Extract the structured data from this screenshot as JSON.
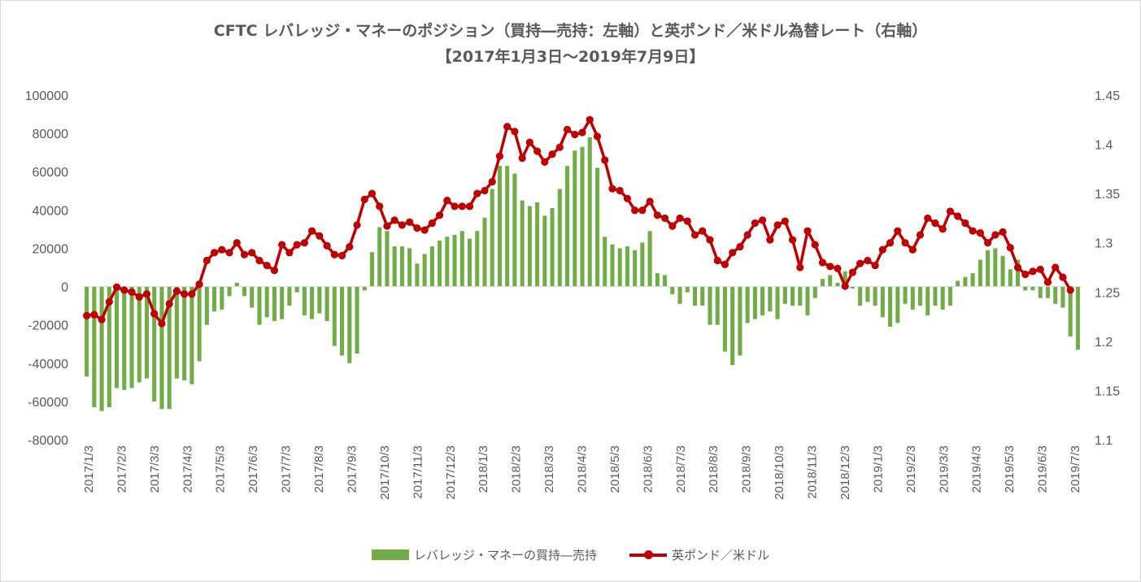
{
  "chart_data": {
    "type": "bar+line",
    "title_line1": "CFTC レバレッジ・マネーのポジション（買持―売持：左軸）と英ポンド／米ドル為替レート（右軸）",
    "title_line2": "【2017年1月3日～2019年7月9日】",
    "y_left": {
      "min": -80000,
      "max": 100000,
      "step": 20000,
      "ticks": [
        "-80000",
        "-60000",
        "-40000",
        "-20000",
        "0",
        "20000",
        "40000",
        "60000",
        "80000",
        "100000"
      ]
    },
    "y_right": {
      "min": 1.1,
      "max": 1.45,
      "step": 0.05,
      "ticks": [
        "1.1",
        "1.15",
        "1.2",
        "1.25",
        "1.3",
        "1.35",
        "1.4",
        "1.45"
      ]
    },
    "x_tick_labels": [
      "2017/1/3",
      "2017/2/3",
      "2017/3/3",
      "2017/4/3",
      "2017/5/3",
      "2017/6/3",
      "2017/7/3",
      "2017/8/3",
      "2017/9/3",
      "2017/10/3",
      "2017/11/3",
      "2017/12/3",
      "2018/1/3",
      "2018/2/3",
      "2018/3/3",
      "2018/4/3",
      "2018/5/3",
      "2018/6/3",
      "2018/7/3",
      "2018/8/3",
      "2018/9/3",
      "2018/10/3",
      "2018/11/3",
      "2018/12/3",
      "2019/1/3",
      "2019/2/3",
      "2019/3/3",
      "2019/4/3",
      "2019/5/3",
      "2019/6/3",
      "2019/7/3"
    ],
    "grid": false,
    "legend_position": "bottom",
    "series": [
      {
        "name": "レバレッジ・マネーの買持―売持",
        "type": "bar",
        "axis": "left",
        "color": "#70ad47",
        "values": [
          -47000,
          -63000,
          -65000,
          -63000,
          -53000,
          -54000,
          -53000,
          -50000,
          -48000,
          -60000,
          -64000,
          -64000,
          -48000,
          -49000,
          -51000,
          -39000,
          -20000,
          -13000,
          -12000,
          -5000,
          2000,
          -5000,
          -11000,
          -20000,
          -16000,
          -18000,
          -17000,
          -10000,
          -3000,
          -15000,
          -17000,
          -14000,
          -18000,
          -31000,
          -36000,
          -40000,
          -35000,
          -2000,
          18000,
          31000,
          29000,
          21000,
          21000,
          20000,
          12000,
          17000,
          21000,
          24000,
          26000,
          27000,
          29000,
          25000,
          29000,
          36000,
          51000,
          63000,
          63000,
          59000,
          45000,
          42000,
          44000,
          37000,
          41000,
          51000,
          63000,
          71000,
          73000,
          78000,
          62000,
          26000,
          22000,
          20000,
          21000,
          19000,
          23000,
          29000,
          7000,
          6000,
          -4000,
          -9000,
          -3000,
          -10000,
          -10000,
          -20000,
          -20000,
          -34000,
          -41000,
          -36000,
          -19000,
          -17000,
          -15000,
          -13000,
          -17000,
          -9000,
          -10000,
          -10000,
          -15000,
          -6000,
          4000,
          6000,
          2000,
          8000,
          -1000,
          -10000,
          -8000,
          -10000,
          -16000,
          -21000,
          -19000,
          -9000,
          -12000,
          -10000,
          -15000,
          -10000,
          -12000,
          -10000,
          3000,
          5000,
          7000,
          14000,
          19000,
          20000,
          16000,
          9000,
          14000,
          -2000,
          -2000,
          -6000,
          -6000,
          -9000,
          -11000,
          -26000,
          -33000
        ]
      },
      {
        "name": "英ポンド／米ドル",
        "type": "line",
        "axis": "right",
        "color": "#c00000",
        "values": [
          1.226,
          1.227,
          1.222,
          1.24,
          1.255,
          1.252,
          1.25,
          1.245,
          1.248,
          1.228,
          1.218,
          1.238,
          1.251,
          1.248,
          1.248,
          1.258,
          1.282,
          1.29,
          1.293,
          1.29,
          1.3,
          1.288,
          1.29,
          1.282,
          1.277,
          1.272,
          1.298,
          1.29,
          1.298,
          1.3,
          1.312,
          1.307,
          1.297,
          1.288,
          1.287,
          1.296,
          1.318,
          1.344,
          1.35,
          1.337,
          1.317,
          1.323,
          1.318,
          1.321,
          1.315,
          1.313,
          1.32,
          1.328,
          1.343,
          1.337,
          1.337,
          1.337,
          1.35,
          1.353,
          1.362,
          1.388,
          1.418,
          1.413,
          1.386,
          1.402,
          1.393,
          1.382,
          1.39,
          1.397,
          1.415,
          1.41,
          1.412,
          1.425,
          1.408,
          1.384,
          1.355,
          1.353,
          1.345,
          1.333,
          1.333,
          1.342,
          1.328,
          1.325,
          1.317,
          1.325,
          1.322,
          1.308,
          1.312,
          1.303,
          1.282,
          1.278,
          1.29,
          1.296,
          1.308,
          1.32,
          1.323,
          1.303,
          1.318,
          1.322,
          1.303,
          1.275,
          1.312,
          1.298,
          1.28,
          1.276,
          1.274,
          1.256,
          1.27,
          1.279,
          1.282,
          1.277,
          1.293,
          1.3,
          1.312,
          1.3,
          1.293,
          1.308,
          1.325,
          1.32,
          1.314,
          1.332,
          1.327,
          1.32,
          1.312,
          1.31,
          1.3,
          1.308,
          1.311,
          1.295,
          1.275,
          1.268,
          1.271,
          1.273,
          1.26,
          1.275,
          1.265,
          1.252
        ]
      }
    ]
  },
  "colors": {
    "bar": "#70ad47",
    "line": "#c00000",
    "axis": "#d9d9d9",
    "text": "#595959"
  },
  "legend": {
    "bar_label": "レバレッジ・マネーの買持―売持",
    "line_label": "英ポンド／米ドル"
  }
}
